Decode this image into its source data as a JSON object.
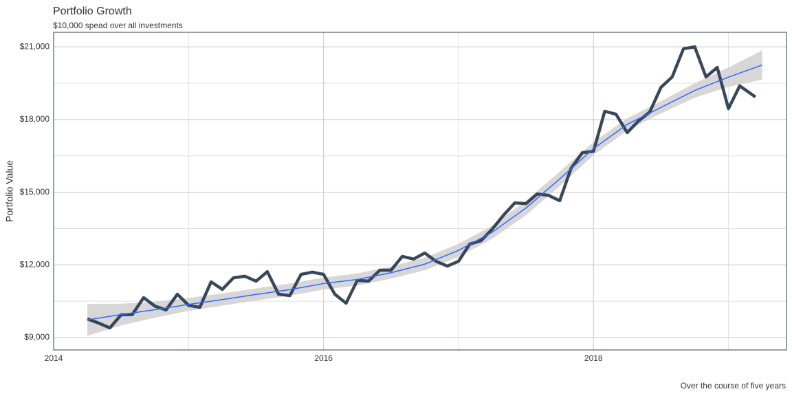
{
  "chart_data": {
    "type": "line",
    "title": "Portfolio Growth",
    "subtitle": "$10,000 spead over all investments",
    "caption": "Over the course of five years",
    "y_label": "Portfolio Value",
    "x": [
      2014.25,
      2014.3333,
      2014.4167,
      2014.5,
      2014.5833,
      2014.6667,
      2014.75,
      2014.8333,
      2014.9167,
      2015.0,
      2015.0833,
      2015.1667,
      2015.25,
      2015.3333,
      2015.4167,
      2015.5,
      2015.5833,
      2015.6667,
      2015.75,
      2015.8333,
      2015.9167,
      2016.0,
      2016.0833,
      2016.1667,
      2016.25,
      2016.3333,
      2016.4167,
      2016.5,
      2016.5833,
      2016.6667,
      2016.75,
      2016.8333,
      2016.9167,
      2017.0,
      2017.0833,
      2017.1667,
      2017.25,
      2017.3333,
      2017.4167,
      2017.5,
      2017.5833,
      2017.6667,
      2017.75,
      2017.8333,
      2017.9167,
      2018.0,
      2018.0833,
      2018.1667,
      2018.25,
      2018.3333,
      2018.4167,
      2018.5,
      2018.5833,
      2018.6667,
      2018.75,
      2018.8333,
      2018.9167,
      2019.0,
      2019.0833,
      2019.2
    ],
    "series": [
      {
        "color": "#2e3e50",
        "values": [
          9770,
          9600,
          9400,
          9940,
          9950,
          10650,
          10300,
          10140,
          10790,
          10330,
          10250,
          11300,
          10990,
          11470,
          11530,
          11330,
          11720,
          10790,
          10730,
          11610,
          11700,
          11610,
          10790,
          10420,
          11360,
          11330,
          11780,
          11780,
          12350,
          12240,
          12490,
          12150,
          11950,
          12150,
          12860,
          13000,
          13480,
          14050,
          14560,
          14530,
          14930,
          14870,
          14650,
          15980,
          16630,
          16690,
          18340,
          18220,
          17460,
          17940,
          18310,
          19330,
          19760,
          20920,
          21000,
          19760,
          20150,
          18450,
          19390,
          18930
        ]
      }
    ],
    "trend": {
      "color": "#3366ff",
      "band_color": "#d3d3d3",
      "x": [
        2014.25,
        2014.5,
        2014.75,
        2015.0,
        2015.25,
        2015.5,
        2015.75,
        2016.0,
        2016.25,
        2016.5,
        2016.75,
        2017.0,
        2017.25,
        2017.5,
        2017.75,
        2018.0,
        2018.25,
        2018.5,
        2018.75,
        2019.0,
        2019.25
      ],
      "values": [
        9730,
        9950,
        10150,
        10370,
        10570,
        10780,
        10980,
        11230,
        11400,
        11680,
        12030,
        12600,
        13350,
        14350,
        15550,
        16800,
        17800,
        18500,
        19200,
        19750,
        20250
      ],
      "lower": [
        9070,
        9500,
        9820,
        10100,
        10320,
        10530,
        10730,
        10980,
        11150,
        11430,
        11780,
        12330,
        13080,
        14050,
        15250,
        16530,
        17550,
        18250,
        18900,
        19350,
        19650
      ],
      "upper": [
        10390,
        10400,
        10480,
        10640,
        10820,
        11030,
        11230,
        11480,
        11650,
        11930,
        12300,
        12870,
        13620,
        14650,
        15850,
        17070,
        18050,
        18750,
        19500,
        20150,
        20850
      ]
    },
    "xlim": [
      2014,
      2019.43
    ],
    "xticks": [
      2014,
      2016,
      2018
    ],
    "ylim": [
      8490,
      21600
    ],
    "yticks": [
      {
        "value": 9000,
        "label": "$9,000"
      },
      {
        "value": 12000,
        "label": "$12,000"
      },
      {
        "value": 15000,
        "label": "$15,000"
      },
      {
        "value": 18000,
        "label": "$18,000"
      },
      {
        "value": 21000,
        "label": "$21,000"
      }
    ],
    "grid": true
  }
}
